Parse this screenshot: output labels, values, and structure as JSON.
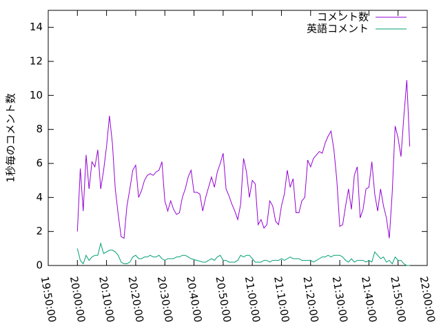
{
  "chart_data": {
    "type": "line",
    "y_label": "1秒毎のコメント数",
    "legend": "top-right",
    "xlim": [
      "19:50:00",
      "22:00:00"
    ],
    "xticks": [
      "19:50:00",
      "20:00:00",
      "20:10:00",
      "20:20:00",
      "20:30:00",
      "20:40:00",
      "20:50:00",
      "21:00:00",
      "21:10:00",
      "21:20:00",
      "21:30:00",
      "21:40:00",
      "21:50:00",
      "22:00:00"
    ],
    "ylim": [
      0,
      15
    ],
    "yticks": [
      0,
      2,
      4,
      6,
      8,
      10,
      12,
      14
    ],
    "x": [
      "20:00:00",
      "20:01:00",
      "20:02:00",
      "20:03:00",
      "20:04:00",
      "20:05:00",
      "20:06:00",
      "20:07:00",
      "20:08:00",
      "20:09:00",
      "20:10:00",
      "20:11:00",
      "20:12:00",
      "20:13:00",
      "20:14:00",
      "20:15:00",
      "20:16:00",
      "20:17:00",
      "20:18:00",
      "20:19:00",
      "20:20:00",
      "20:21:00",
      "20:22:00",
      "20:23:00",
      "20:24:00",
      "20:25:00",
      "20:26:00",
      "20:27:00",
      "20:28:00",
      "20:29:00",
      "20:30:00",
      "20:31:00",
      "20:32:00",
      "20:33:00",
      "20:34:00",
      "20:35:00",
      "20:36:00",
      "20:37:00",
      "20:38:00",
      "20:39:00",
      "20:40:00",
      "20:41:00",
      "20:42:00",
      "20:43:00",
      "20:44:00",
      "20:45:00",
      "20:46:00",
      "20:47:00",
      "20:48:00",
      "20:49:00",
      "20:50:00",
      "20:51:00",
      "20:52:00",
      "20:53:00",
      "20:54:00",
      "20:55:00",
      "20:56:00",
      "20:57:00",
      "20:58:00",
      "20:59:00",
      "21:00:00",
      "21:01:00",
      "21:02:00",
      "21:03:00",
      "21:04:00",
      "21:05:00",
      "21:06:00",
      "21:07:00",
      "21:08:00",
      "21:09:00",
      "21:10:00",
      "21:11:00",
      "21:12:00",
      "21:13:00",
      "21:14:00",
      "21:15:00",
      "21:16:00",
      "21:17:00",
      "21:18:00",
      "21:19:00",
      "21:20:00",
      "21:21:00",
      "21:22:00",
      "21:23:00",
      "21:24:00",
      "21:25:00",
      "21:26:00",
      "21:27:00",
      "21:28:00",
      "21:29:00",
      "21:30:00",
      "21:31:00",
      "21:32:00",
      "21:33:00",
      "21:34:00",
      "21:35:00",
      "21:36:00",
      "21:37:00",
      "21:38:00",
      "21:39:00",
      "21:40:00",
      "21:41:00",
      "21:42:00",
      "21:43:00",
      "21:44:00",
      "21:45:00",
      "21:46:00",
      "21:47:00",
      "21:48:00",
      "21:49:00",
      "21:50:00",
      "21:51:00",
      "21:52:00",
      "21:53:00",
      "21:54:00"
    ],
    "series": [
      {
        "name": "コメント数",
        "color": "#9400d3",
        "values": [
          2.0,
          5.7,
          3.2,
          6.5,
          4.5,
          6.1,
          5.8,
          6.8,
          4.5,
          5.6,
          7.0,
          8.8,
          7.2,
          4.5,
          3.0,
          1.7,
          1.6,
          3.5,
          4.5,
          5.6,
          5.9,
          4.0,
          4.4,
          5.0,
          5.3,
          5.4,
          5.3,
          5.5,
          5.6,
          6.1,
          3.8,
          3.2,
          3.8,
          3.3,
          3.0,
          3.1,
          4.0,
          4.5,
          5.2,
          5.6,
          4.3,
          4.3,
          4.2,
          3.2,
          4.0,
          4.6,
          5.2,
          4.6,
          5.5,
          6.0,
          6.6,
          4.5,
          4.1,
          3.6,
          3.2,
          2.7,
          3.6,
          6.3,
          5.5,
          4.0,
          5.0,
          4.8,
          2.4,
          2.7,
          2.2,
          2.4,
          3.8,
          3.5,
          2.6,
          2.4,
          3.5,
          4.2,
          5.6,
          4.6,
          5.1,
          3.1,
          3.1,
          3.8,
          4.0,
          6.2,
          5.8,
          6.3,
          6.5,
          6.7,
          6.6,
          7.2,
          7.6,
          7.9,
          6.8,
          5.0,
          2.3,
          2.4,
          3.5,
          4.5,
          3.3,
          5.3,
          5.8,
          2.8,
          3.3,
          4.5,
          4.6,
          6.1,
          4.2,
          3.2,
          4.5,
          3.5,
          2.8,
          1.6,
          4.3,
          8.2,
          7.5,
          6.4,
          8.8,
          10.9,
          7.0
        ]
      },
      {
        "name": "英語コメント",
        "color": "#009e73",
        "values": [
          1.0,
          0.3,
          0.1,
          0.6,
          0.3,
          0.5,
          0.6,
          0.6,
          1.3,
          0.7,
          0.8,
          0.9,
          0.9,
          0.8,
          0.6,
          0.2,
          0.1,
          0.1,
          0.2,
          0.5,
          0.6,
          0.4,
          0.4,
          0.5,
          0.5,
          0.6,
          0.5,
          0.5,
          0.6,
          0.4,
          0.3,
          0.4,
          0.4,
          0.4,
          0.5,
          0.5,
          0.6,
          0.6,
          0.5,
          0.4,
          0.35,
          0.3,
          0.25,
          0.2,
          0.2,
          0.3,
          0.4,
          0.3,
          0.5,
          0.6,
          0.3,
          0.3,
          0.2,
          0.2,
          0.2,
          0.3,
          0.6,
          0.5,
          0.6,
          0.6,
          0.4,
          0.2,
          0.2,
          0.2,
          0.3,
          0.3,
          0.2,
          0.3,
          0.3,
          0.3,
          0.4,
          0.3,
          0.4,
          0.5,
          0.4,
          0.4,
          0.4,
          0.3,
          0.3,
          0.3,
          0.3,
          0.2,
          0.3,
          0.4,
          0.5,
          0.5,
          0.6,
          0.5,
          0.6,
          0.6,
          0.6,
          0.5,
          0.3,
          0.2,
          0.4,
          0.2,
          0.3,
          0.3,
          0.3,
          0.2,
          0.3,
          0.2,
          0.8,
          0.6,
          0.4,
          0.5,
          0.2,
          0.3,
          0.1,
          0.5,
          0.3,
          0.3,
          0.1,
          0.0,
          0.0
        ]
      }
    ]
  }
}
